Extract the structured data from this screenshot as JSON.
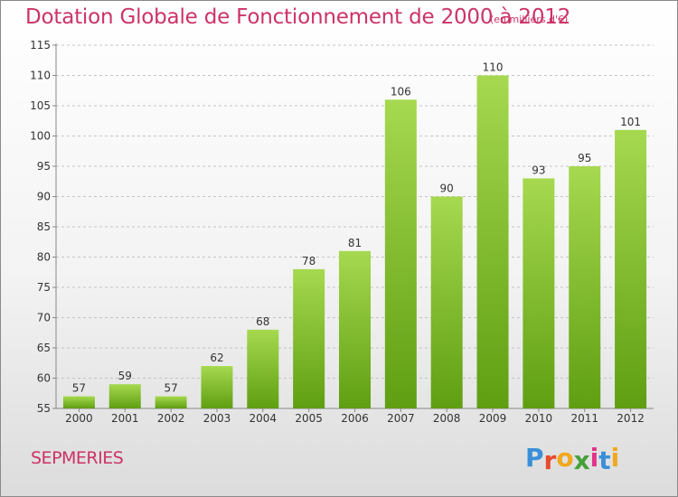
{
  "header": {
    "title": "Dotation Globale de Fonctionnement de 2000 à 2012",
    "unit": "(en milliers d'€)"
  },
  "footer": {
    "commune": "SEPMERIES",
    "logo": "Proxiti"
  },
  "colors": {
    "title": "#cc3366",
    "bar_light": "#a6d94f",
    "bar_dark": "#5f9e12",
    "logo_letters": [
      "#3a8fd9",
      "#e84a2c",
      "#f2a81d",
      "#47a03a",
      "#e2338a",
      "#3a8fd9",
      "#f2a81d"
    ]
  },
  "chart_data": {
    "type": "bar",
    "title": "Dotation Globale de Fonctionnement de 2000 à 2012",
    "subtitle": "(en milliers d'€)",
    "categories": [
      "2000",
      "2001",
      "2002",
      "2003",
      "2004",
      "2005",
      "2006",
      "2007",
      "2008",
      "2009",
      "2010",
      "2011",
      "2012"
    ],
    "values": [
      57,
      59,
      57,
      62,
      68,
      78,
      81,
      106,
      90,
      110,
      93,
      95,
      101
    ],
    "ylim": [
      55,
      115
    ],
    "yticks": [
      55,
      60,
      65,
      70,
      75,
      80,
      85,
      90,
      95,
      100,
      105,
      110,
      115
    ],
    "grid": "horizontal-dashed",
    "data_labels": true
  }
}
